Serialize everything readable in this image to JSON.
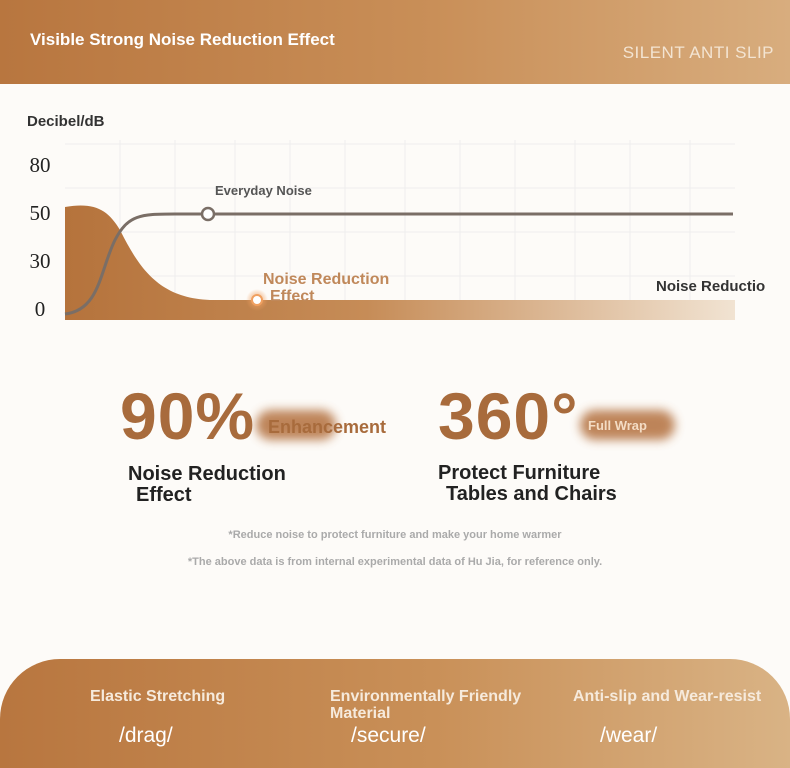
{
  "header": {
    "title": "Visible Strong Noise Reduction Effect",
    "tagline": "SILENT ANTI SLIP"
  },
  "chart": {
    "axis_label": "Decibel/dB",
    "ticks": [
      "80",
      "50",
      "30",
      "0"
    ],
    "everyday": "Everyday Noise",
    "reduction_line1": "Noise Reduction",
    "reduction_line2": "Effect",
    "reduction_right": "Noise Reductio"
  },
  "stats": [
    {
      "number": "90%",
      "badge": "Enhancement",
      "caption": [
        "Noise Reduction",
        "Effect"
      ]
    },
    {
      "number": "360°",
      "badge": "Full Wrap",
      "caption": [
        "Protect Furniture",
        "Tables and Chairs"
      ]
    }
  ],
  "notes": [
    "*Reduce noise to protect furniture and make your home warmer",
    "*The above data is from internal experimental data of Hu Jia, for reference only."
  ],
  "features": [
    {
      "title": "Elastic Stretching",
      "word": "/drag/"
    },
    {
      "title": "Environmentally Friendly Material",
      "word": "/secure/"
    },
    {
      "title": "Anti-slip and Wear-resist",
      "word": "/wear/"
    }
  ]
}
